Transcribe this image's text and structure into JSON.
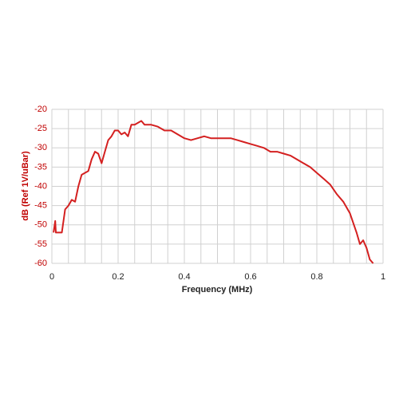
{
  "chart_data": {
    "type": "line",
    "ylabel": "dB (Ref 1V/uBar)",
    "xlabel": "Frequency (MHz)",
    "xlim": [
      0,
      1
    ],
    "xticks": [
      0,
      0.2,
      0.4,
      0.6,
      0.8,
      1
    ],
    "ylim": [
      -60,
      -20
    ],
    "yticks": [
      -60,
      -55,
      -50,
      -45,
      -40,
      -35,
      -30,
      -25,
      -20
    ],
    "grid": true,
    "x_minor_divisions": 4,
    "series": [
      {
        "color": "#d42020",
        "x": [
          0.005,
          0.01,
          0.012,
          0.02,
          0.03,
          0.04,
          0.05,
          0.06,
          0.07,
          0.08,
          0.09,
          0.1,
          0.11,
          0.12,
          0.13,
          0.14,
          0.15,
          0.16,
          0.17,
          0.18,
          0.19,
          0.2,
          0.21,
          0.22,
          0.23,
          0.24,
          0.25,
          0.26,
          0.27,
          0.28,
          0.3,
          0.32,
          0.34,
          0.36,
          0.38,
          0.4,
          0.42,
          0.44,
          0.46,
          0.48,
          0.5,
          0.52,
          0.54,
          0.56,
          0.58,
          0.6,
          0.62,
          0.64,
          0.66,
          0.68,
          0.7,
          0.72,
          0.74,
          0.76,
          0.78,
          0.8,
          0.82,
          0.84,
          0.86,
          0.88,
          0.9,
          0.92,
          0.93,
          0.94,
          0.95,
          0.96,
          0.97
        ],
        "values": [
          -52,
          -49,
          -52,
          -52,
          -52,
          -46,
          -45,
          -43.5,
          -44,
          -40,
          -37,
          -36.5,
          -36,
          -33,
          -31,
          -31.5,
          -34,
          -31,
          -28,
          -27,
          -25.5,
          -25.5,
          -26.5,
          -26,
          -27,
          -24,
          -24,
          -23.5,
          -23,
          -24,
          -24,
          -24.5,
          -25.5,
          -25.5,
          -26.5,
          -27.5,
          -28,
          -27.5,
          -27,
          -27.5,
          -27.5,
          -27.5,
          -27.5,
          -28,
          -28.5,
          -29,
          -29.5,
          -30,
          -31,
          -31,
          -31.5,
          -32,
          -33,
          -34,
          -35,
          -36.5,
          -38,
          -39.5,
          -42,
          -44,
          -47,
          -52,
          -55,
          -54,
          -56,
          -59,
          -60
        ]
      }
    ]
  }
}
